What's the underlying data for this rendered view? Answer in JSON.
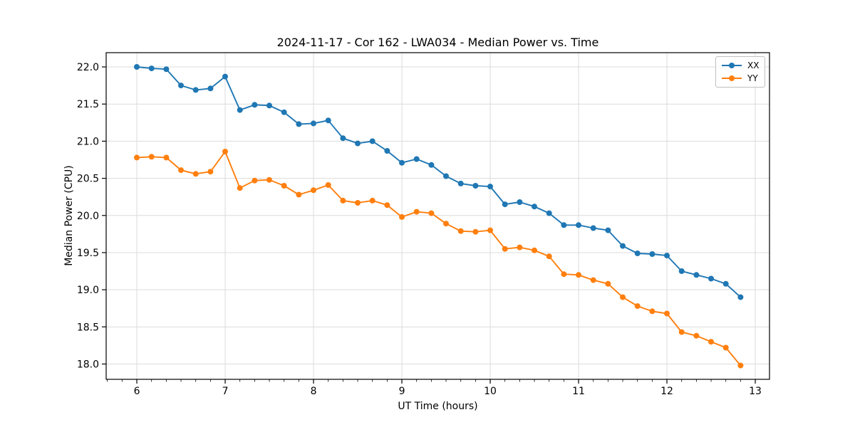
{
  "figure": {
    "title": "2024-11-17 - Cor 162 - LWA034 - Median Power vs. Time",
    "xlabel": "UT Time (hours)",
    "ylabel": "Median Power (CPU)"
  },
  "chart_data": {
    "type": "line",
    "title": "2024-11-17 - Cor 162 - LWA034 - Median Power vs. Time",
    "xlabel": "UT Time (hours)",
    "ylabel": "Median Power (CPU)",
    "grid": true,
    "legend_position": "upper right",
    "marker": "circle",
    "xlim": [
      5.653,
      13.161
    ],
    "ylim": [
      17.794,
      22.192
    ],
    "xticks": [
      6,
      7,
      8,
      9,
      10,
      11,
      12,
      13
    ],
    "xtick_labels": [
      "6",
      "7",
      "8",
      "9",
      "10",
      "11",
      "12",
      "13"
    ],
    "yticks": [
      18.0,
      18.5,
      19.0,
      19.5,
      20.0,
      20.5,
      21.0,
      21.5,
      22.0
    ],
    "ytick_labels": [
      "18.0",
      "18.5",
      "19.0",
      "19.5",
      "20.0",
      "20.5",
      "21.0",
      "21.5",
      "22.0"
    ],
    "x_minor_step": 0.16667,
    "x": [
      6.0,
      6.1667,
      6.3333,
      6.5,
      6.6667,
      6.8333,
      7.0,
      7.1667,
      7.3333,
      7.5,
      7.6667,
      7.8333,
      8.0,
      8.1667,
      8.3333,
      8.5,
      8.6667,
      8.8333,
      9.0,
      9.1667,
      9.3333,
      9.5,
      9.6667,
      9.8333,
      10.0,
      10.1667,
      10.3333,
      10.5,
      10.6667,
      10.8333,
      11.0,
      11.1667,
      11.3333,
      11.5,
      11.6667,
      11.8333,
      12.0,
      12.1667,
      12.3333,
      12.5,
      12.6667,
      12.8333
    ],
    "series": [
      {
        "name": "XX",
        "color": "#1f77b4",
        "values": [
          22.0,
          21.98,
          21.97,
          21.75,
          21.69,
          21.71,
          21.87,
          21.42,
          21.49,
          21.48,
          21.39,
          21.23,
          21.24,
          21.28,
          21.04,
          20.97,
          21.0,
          20.87,
          20.71,
          20.76,
          20.68,
          20.53,
          20.43,
          20.4,
          20.39,
          20.15,
          20.18,
          20.12,
          20.03,
          19.87,
          19.87,
          19.83,
          19.8,
          19.59,
          19.49,
          19.48,
          19.46,
          19.25,
          19.2,
          19.15,
          19.08,
          18.9
        ]
      },
      {
        "name": "YY",
        "color": "#ff7f0e",
        "values": [
          20.78,
          20.79,
          20.78,
          20.61,
          20.56,
          20.59,
          20.86,
          20.37,
          20.47,
          20.48,
          20.4,
          20.28,
          20.34,
          20.41,
          20.2,
          20.17,
          20.2,
          20.14,
          19.98,
          20.05,
          20.03,
          19.89,
          19.79,
          19.78,
          19.8,
          19.55,
          19.57,
          19.53,
          19.45,
          19.21,
          19.2,
          19.13,
          19.08,
          18.9,
          18.78,
          18.71,
          18.68,
          18.43,
          18.38,
          18.3,
          18.22,
          17.98
        ]
      }
    ]
  },
  "style": {
    "grid_color": "#dcdcdc",
    "spine_color": "#000000",
    "background": "#ffffff"
  }
}
